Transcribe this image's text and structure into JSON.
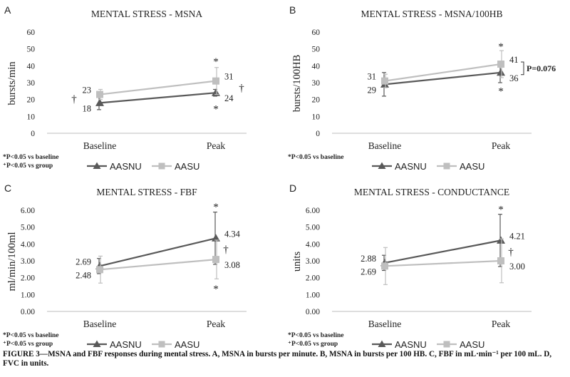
{
  "chart_data": [
    {
      "type": "line",
      "panel_letter": "A",
      "title": "MENTAL STRESS - MSNA",
      "ylabel": "bursts/min",
      "xlabel": "",
      "categories": [
        "Baseline",
        "Peak"
      ],
      "ylim": [
        0,
        60
      ],
      "yticks": [
        "0",
        "10",
        "20",
        "30",
        "40",
        "50",
        "60"
      ],
      "series": [
        {
          "name": "AASNU",
          "values": [
            18,
            24
          ],
          "errors": [
            4,
            2
          ],
          "labels": [
            "18",
            "24"
          ],
          "color": "#595959",
          "marker": "triangle"
        },
        {
          "name": "AASU",
          "values": [
            23,
            31
          ],
          "errors": [
            3,
            8
          ],
          "labels": [
            "23",
            "31"
          ],
          "color": "#bfbfbf",
          "marker": "square"
        }
      ],
      "annotations": [
        {
          "text": "*",
          "category": 1,
          "value": 43
        },
        {
          "text": "*",
          "category": 1,
          "value": 15
        },
        {
          "text": "†",
          "category": 0,
          "value": 21,
          "side": "left"
        },
        {
          "text": "†",
          "category": 1,
          "value": 27.5,
          "side": "far-right"
        }
      ],
      "footnotes": [
        "*P<0.05 vs baseline",
        "⁺P<0.05 vs group"
      ],
      "grid": false,
      "legend": "bottom"
    },
    {
      "type": "line",
      "panel_letter": "B",
      "title": "MENTAL STRESS - MSNA/100HB",
      "ylabel": "bursts/100HB",
      "xlabel": "",
      "categories": [
        "Baseline",
        "Peak"
      ],
      "ylim": [
        0,
        60
      ],
      "yticks": [
        "0",
        "10",
        "20",
        "30",
        "40",
        "50",
        "60"
      ],
      "series": [
        {
          "name": "AASNU",
          "values": [
            29,
            36
          ],
          "errors": [
            7,
            6
          ],
          "labels": [
            "29",
            "36"
          ],
          "color": "#595959",
          "marker": "triangle"
        },
        {
          "name": "AASU",
          "values": [
            31,
            41
          ],
          "errors": [
            4,
            8
          ],
          "labels": [
            "31",
            "41"
          ],
          "color": "#bfbfbf",
          "marker": "square"
        }
      ],
      "annotations": [
        {
          "text": "*",
          "category": 1,
          "value": 52
        },
        {
          "text": "*",
          "category": 1,
          "value": 25.5
        }
      ],
      "pvalue_text": "P=0.076",
      "footnotes": [
        "*P<0.05 vs baseline"
      ],
      "grid": false,
      "legend": "bottom"
    },
    {
      "type": "line",
      "panel_letter": "C",
      "title": "MENTAL STRESS - FBF",
      "ylabel": "ml/min/100ml",
      "xlabel": "",
      "categories": [
        "Baseline",
        "Peak"
      ],
      "ylim": [
        0,
        6
      ],
      "yticks": [
        "0.00",
        "1.00",
        "2.00",
        "3.00",
        "4.00",
        "5.00",
        "6.00"
      ],
      "series": [
        {
          "name": "AASNU",
          "values": [
            2.69,
            4.34
          ],
          "errors": [
            0.45,
            1.55
          ],
          "labels": [
            "2.69",
            "4.34"
          ],
          "color": "#595959",
          "marker": "triangle"
        },
        {
          "name": "AASU",
          "values": [
            2.48,
            3.08
          ],
          "errors": [
            0.8,
            1.15
          ],
          "labels": [
            "2.48",
            "3.08"
          ],
          "color": "#bfbfbf",
          "marker": "square"
        }
      ],
      "annotations": [
        {
          "text": "*",
          "category": 1,
          "value": 6.25
        },
        {
          "text": "*",
          "category": 1,
          "value": 1.4
        },
        {
          "text": "†",
          "category": 1,
          "value": 3.75,
          "side": "right"
        }
      ],
      "footnotes": [
        "*P<0.05 vs baseline",
        "⁺P<0.05 vs group"
      ],
      "grid": false,
      "legend": "bottom"
    },
    {
      "type": "line",
      "panel_letter": "D",
      "title": "MENTAL STRESS - CONDUCTANCE",
      "ylabel": "units",
      "xlabel": "",
      "categories": [
        "Baseline",
        "Peak"
      ],
      "ylim": [
        0,
        6
      ],
      "yticks": [
        "0.00",
        "1.00",
        "2.00",
        "3.00",
        "4.00",
        "5.00",
        "6.00"
      ],
      "series": [
        {
          "name": "AASNU",
          "values": [
            2.88,
            4.21
          ],
          "errors": [
            0.45,
            1.55
          ],
          "labels": [
            "2.88",
            "4.21"
          ],
          "color": "#595959",
          "marker": "triangle"
        },
        {
          "name": "AASU",
          "values": [
            2.69,
            3.0
          ],
          "errors": [
            1.1,
            1.3
          ],
          "labels": [
            "2.69",
            "3.00"
          ],
          "color": "#bfbfbf",
          "marker": "square"
        }
      ],
      "annotations": [
        {
          "text": "*",
          "category": 1,
          "value": 6.1
        },
        {
          "text": "†",
          "category": 1,
          "value": 3.6,
          "side": "right"
        }
      ],
      "footnotes": [
        "*P<0.05 vs baseline",
        "⁺P<0.05 vs group"
      ],
      "grid": false,
      "legend": "bottom"
    }
  ],
  "caption": "FIGURE 3—MSNA and FBF responses during mental stress. A, MSNA in bursts per minute. B, MSNA in bursts per 100 HB. C, FBF in mL·min⁻¹ per 100 mL. D, FVC in units."
}
